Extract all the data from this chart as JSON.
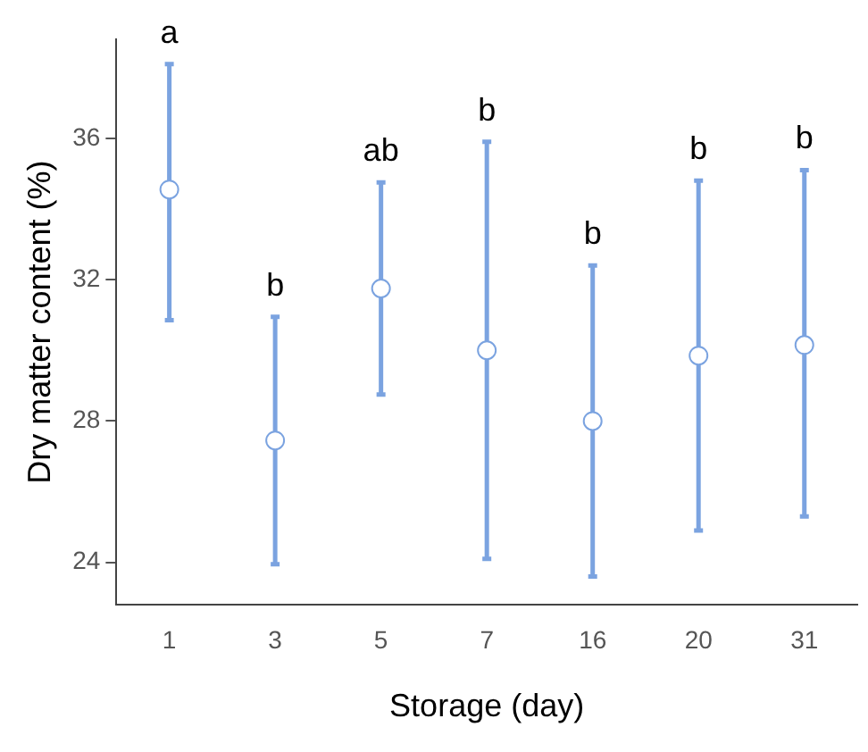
{
  "chart_data": {
    "type": "scatter",
    "xlabel": "Storage (day)",
    "ylabel": "Dry matter content (%)",
    "categories": [
      "1",
      "3",
      "5",
      "7",
      "16",
      "20",
      "31"
    ],
    "series": [
      {
        "color": "#7ba3e0",
        "values": [
          34.55,
          27.45,
          31.75,
          30.0,
          28.0,
          29.85,
          30.15
        ],
        "errors": [
          [
            30.85,
            38.1
          ],
          [
            23.95,
            30.95
          ],
          [
            28.75,
            34.75
          ],
          [
            24.1,
            35.9
          ],
          [
            23.6,
            32.4
          ],
          [
            24.9,
            34.8
          ],
          [
            25.3,
            35.1
          ]
        ]
      }
    ],
    "ylim": [
      22.8,
      38.8
    ],
    "yticks": [
      24,
      28,
      32,
      36
    ],
    "grid": false,
    "legend": false,
    "marker": "circle",
    "annotations": [
      {
        "text": "a",
        "x": "1",
        "y": 38.1
      },
      {
        "text": "b",
        "x": "3",
        "y": 30.95
      },
      {
        "text": "ab",
        "x": "5",
        "y": 34.75
      },
      {
        "text": "b",
        "x": "7",
        "y": 35.9
      },
      {
        "text": "b",
        "x": "16",
        "y": 32.4
      },
      {
        "text": "b",
        "x": "20",
        "y": 34.8
      },
      {
        "text": "b",
        "x": "31",
        "y": 35.1
      }
    ]
  }
}
